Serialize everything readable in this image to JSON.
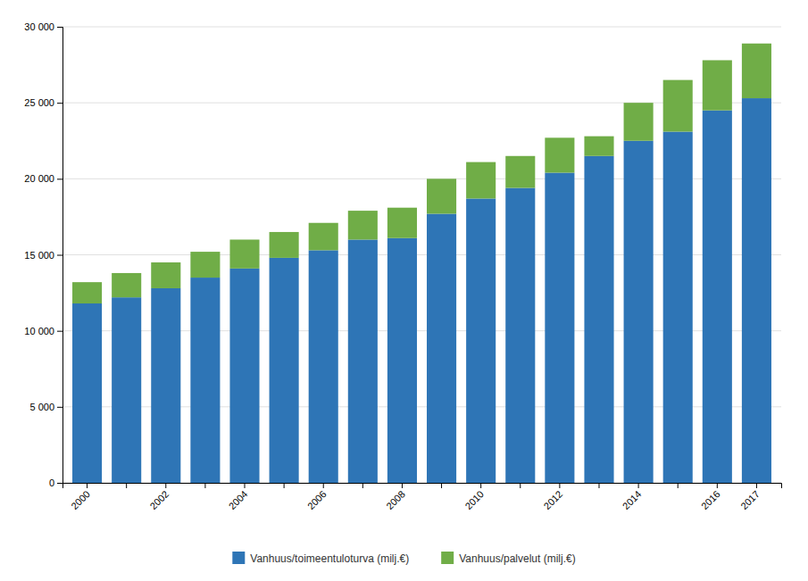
{
  "chart_data": {
    "type": "bar",
    "stacked": true,
    "categories": [
      "2000",
      null,
      "2002",
      null,
      "2004",
      null,
      "2006",
      null,
      "2008",
      null,
      "2010",
      null,
      "2012",
      null,
      "2014",
      null,
      "2016",
      "2017"
    ],
    "series": [
      {
        "name": "Vanhuus/toimeentuloturva (milj.€)",
        "color": "#2E75B6",
        "values": [
          11800,
          12200,
          12800,
          13500,
          14100,
          14800,
          15300,
          16000,
          16100,
          17700,
          18700,
          19400,
          20400,
          21500,
          22500,
          23100,
          24500,
          25300
        ]
      },
      {
        "name": "Vanhuus/palvelut (milj.€)",
        "color": "#70AD47",
        "values": [
          1400,
          1600,
          1700,
          1700,
          1900,
          1700,
          1800,
          1900,
          2000,
          2300,
          2400,
          2100,
          2300,
          1300,
          2500,
          3400,
          3300,
          3600
        ]
      }
    ],
    "ylim": [
      0,
      30000
    ],
    "yticks": [
      0,
      {
        "value": 5000,
        "label": "5 000"
      },
      {
        "value": 10000,
        "label": "10 000"
      },
      {
        "value": 15000,
        "label": "15 000"
      },
      {
        "value": 20000,
        "label": "20 000"
      },
      {
        "value": 25000,
        "label": "25 000"
      },
      {
        "value": 30000,
        "label": "30 000"
      }
    ],
    "grid": true,
    "legend": "bottom"
  }
}
